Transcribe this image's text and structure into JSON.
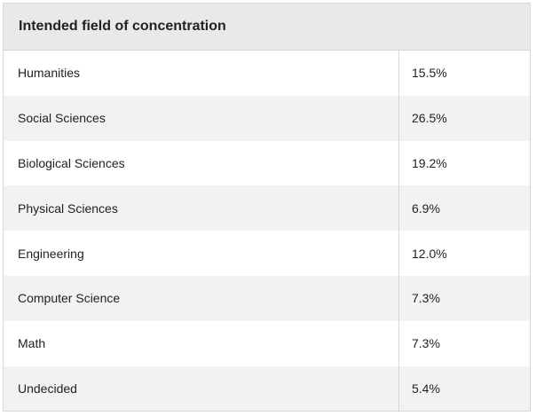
{
  "table": {
    "title": "Intended field of concentration",
    "rows": [
      {
        "label": "Humanities",
        "value": "15.5%"
      },
      {
        "label": "Social Sciences",
        "value": "26.5%"
      },
      {
        "label": "Biological Sciences",
        "value": "19.2%"
      },
      {
        "label": "Physical Sciences",
        "value": "6.9%"
      },
      {
        "label": "Engineering",
        "value": "12.0%"
      },
      {
        "label": "Computer Science",
        "value": "7.3%"
      },
      {
        "label": "Math",
        "value": "7.3%"
      },
      {
        "label": "Undecided",
        "value": "5.4%"
      }
    ]
  }
}
